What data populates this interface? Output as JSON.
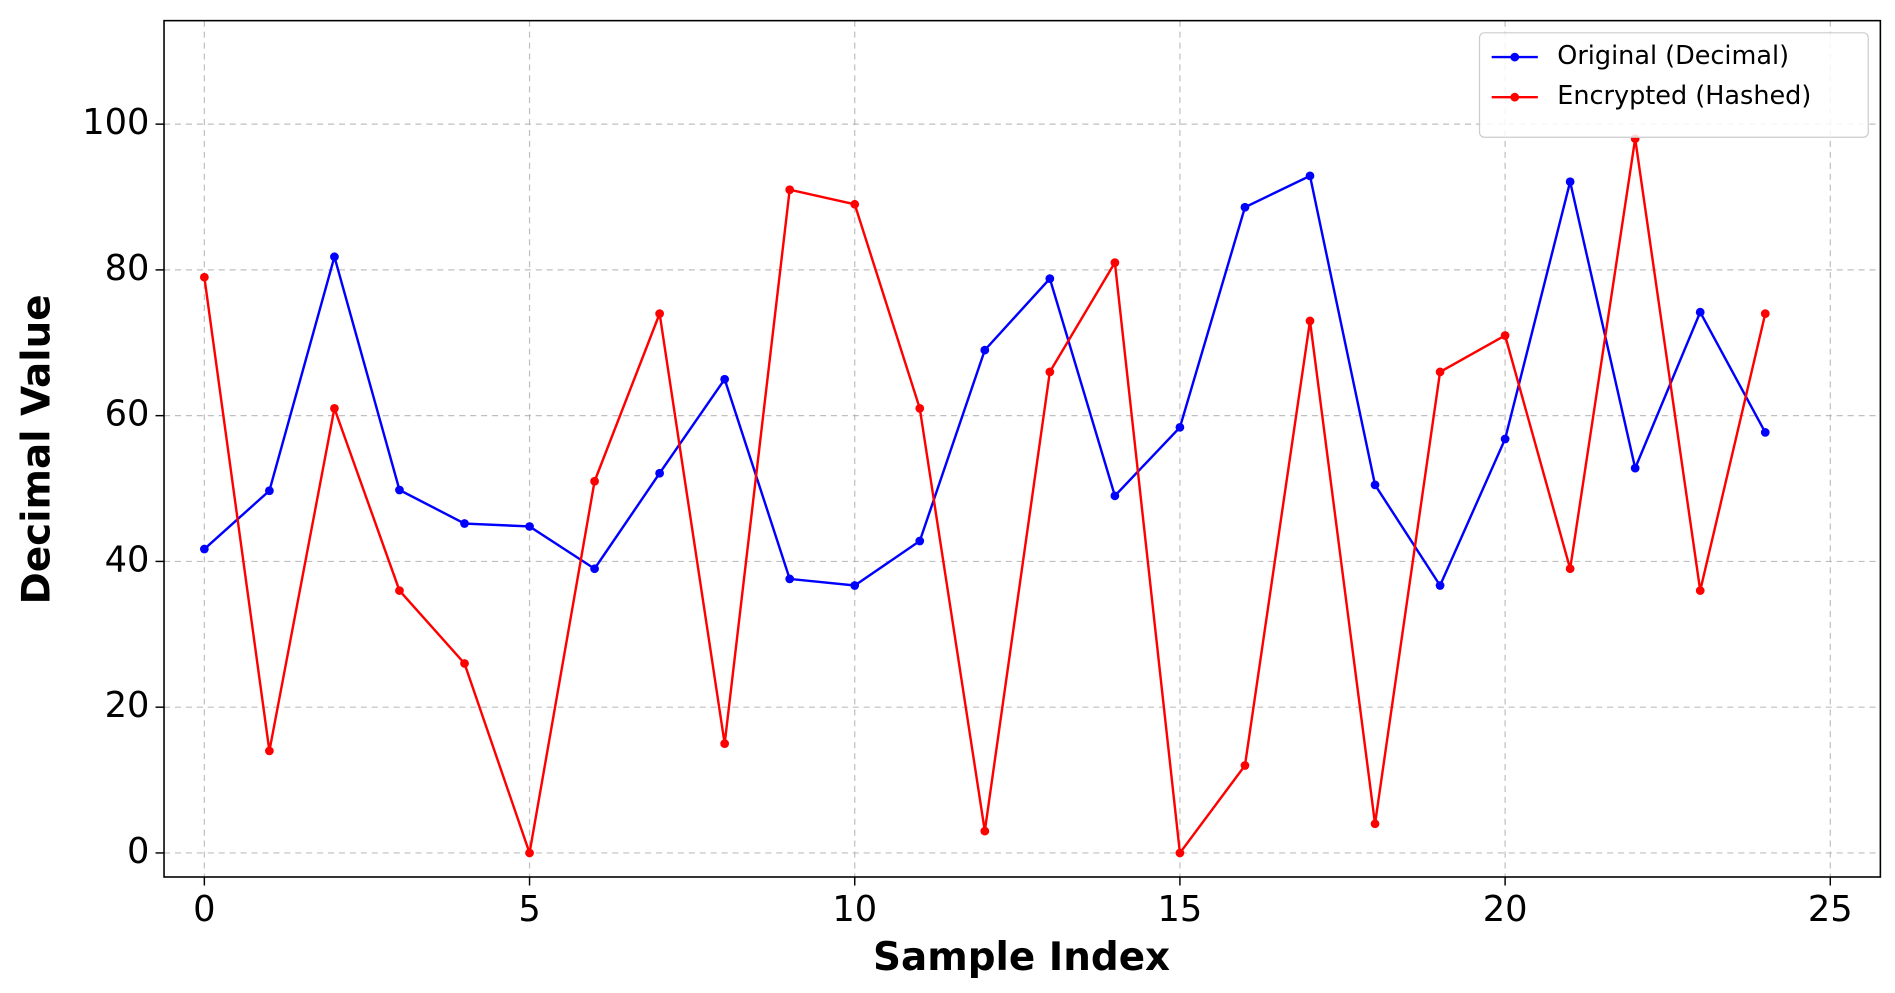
{
  "chart_data": {
    "type": "line",
    "x_label": "Sample Index",
    "y_label": "Decimal Value",
    "x": [
      0,
      1,
      2,
      3,
      4,
      5,
      6,
      7,
      8,
      9,
      10,
      11,
      12,
      13,
      14,
      15,
      16,
      17,
      18,
      19,
      20,
      21,
      22,
      23,
      24
    ],
    "series": [
      {
        "name": "Original (Decimal)",
        "color": "#0000ff",
        "values": [
          41.7,
          49.7,
          81.8,
          49.8,
          45.2,
          44.8,
          39,
          52.1,
          65,
          37.6,
          36.7,
          42.8,
          69,
          78.8,
          49,
          58.4,
          88.6,
          92.9,
          50.5,
          36.7,
          56.8,
          92.1,
          52.8,
          74.2,
          57.7
        ]
      },
      {
        "name": "Encrypted (Hashed)",
        "color": "#ff0000",
        "values": [
          79,
          14,
          61,
          36,
          26,
          0,
          51,
          74,
          15,
          91,
          89,
          61,
          3,
          66,
          81,
          0,
          12,
          73,
          4,
          66,
          71,
          39,
          98,
          36,
          74
        ]
      }
    ],
    "xlim": [
      -0.62,
      25.77
    ],
    "xticks": [
      0,
      5,
      10,
      15,
      20,
      25
    ],
    "ylim": [
      -3.3,
      114.2
    ],
    "yticks": [
      0,
      20,
      40,
      60,
      80,
      100
    ],
    "grid": true,
    "legend": "upper right"
  }
}
